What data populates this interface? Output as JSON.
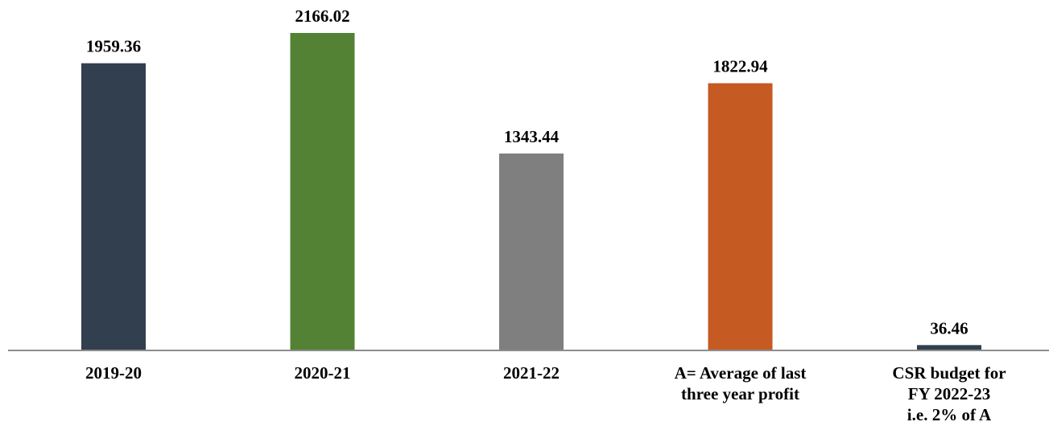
{
  "chart_data": {
    "type": "bar",
    "title": "",
    "xlabel": "",
    "ylabel": "",
    "ylim": [
      0,
      2166.02
    ],
    "grid": false,
    "legend": "none",
    "categories": [
      [
        "2019-20"
      ],
      [
        "2020-21"
      ],
      [
        "2021-22"
      ],
      [
        "A= Average of last",
        "three year profit"
      ],
      [
        "CSR budget for",
        "FY 2022-23",
        "i.e. 2% of A"
      ]
    ],
    "values": [
      1959.36,
      2166.02,
      1343.44,
      1822.94,
      36.46
    ],
    "value_labels": [
      "1959.36",
      "2166.02",
      "1343.44",
      "1822.94",
      "36.46"
    ],
    "colors": [
      "#323f4f",
      "#548235",
      "#7f7f7f",
      "#c55a22",
      "#323f4f"
    ],
    "axis_color": "#8c8c8c"
  }
}
